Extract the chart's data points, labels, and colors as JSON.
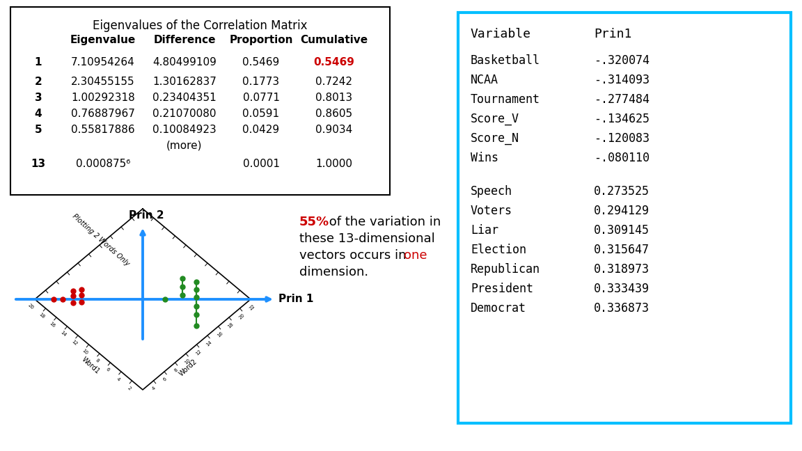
{
  "bg_color": "#ffffff",
  "table_title": "Eigenvalues of the Correlation Matrix",
  "table_headers": [
    "",
    "Eigenvalue",
    "Difference",
    "Proportion",
    "Cumulative"
  ],
  "table_rows": [
    [
      "1",
      "7.10954264",
      "4.80499109",
      "0.5469",
      "0.5469"
    ],
    [
      "2",
      "2.30455155",
      "1.30162837",
      "0.1773",
      "0.7242"
    ],
    [
      "3",
      "1.00292318",
      "0.23404351",
      "0.0771",
      "0.8013"
    ],
    [
      "4",
      "0.76887967",
      "0.21070080",
      "0.0591",
      "0.8605"
    ],
    [
      "5",
      "0.55817886",
      "0.10084923",
      "0.0429",
      "0.9034"
    ],
    [
      "",
      "",
      "(more)",
      "",
      ""
    ],
    [
      "13",
      "0.000875⁶",
      "",
      "0.0001",
      "1.0000"
    ]
  ],
  "red_cell": [
    0,
    4
  ],
  "box2_title_var": "Variable",
  "box2_title_prin": "Prin1",
  "box2_neg_vars": [
    [
      "Basketball",
      "-.320074"
    ],
    [
      "NCAA",
      "-.314093"
    ],
    [
      "Tournament",
      "-.277484"
    ],
    [
      "Score_V",
      "-.134625"
    ],
    [
      "Score_N",
      "-.120083"
    ],
    [
      "Wins",
      "-.080110"
    ]
  ],
  "box2_pos_vars": [
    [
      "Speech",
      "0.273525"
    ],
    [
      "Voters",
      "0.294129"
    ],
    [
      "Liar",
      "0.309145"
    ],
    [
      "Election",
      "0.315647"
    ],
    [
      "Republican",
      "0.318973"
    ],
    [
      "President",
      "0.333439"
    ],
    [
      "Democrat",
      "0.336873"
    ]
  ],
  "box2_border_color": "#00bfff",
  "diamond_label": "Plotting 2 Words Only",
  "prin1_label": "Prin 1",
  "prin2_label": "Prin 2",
  "word1_label": "Word1",
  "word2_label": "Word2",
  "annot_pct": "55%",
  "annot_line2": " of the variation in",
  "annot_line3": "these 13-dimensional",
  "annot_line4a": "vectors occurs in ",
  "annot_line4b": "one",
  "annot_line5": "dimension."
}
